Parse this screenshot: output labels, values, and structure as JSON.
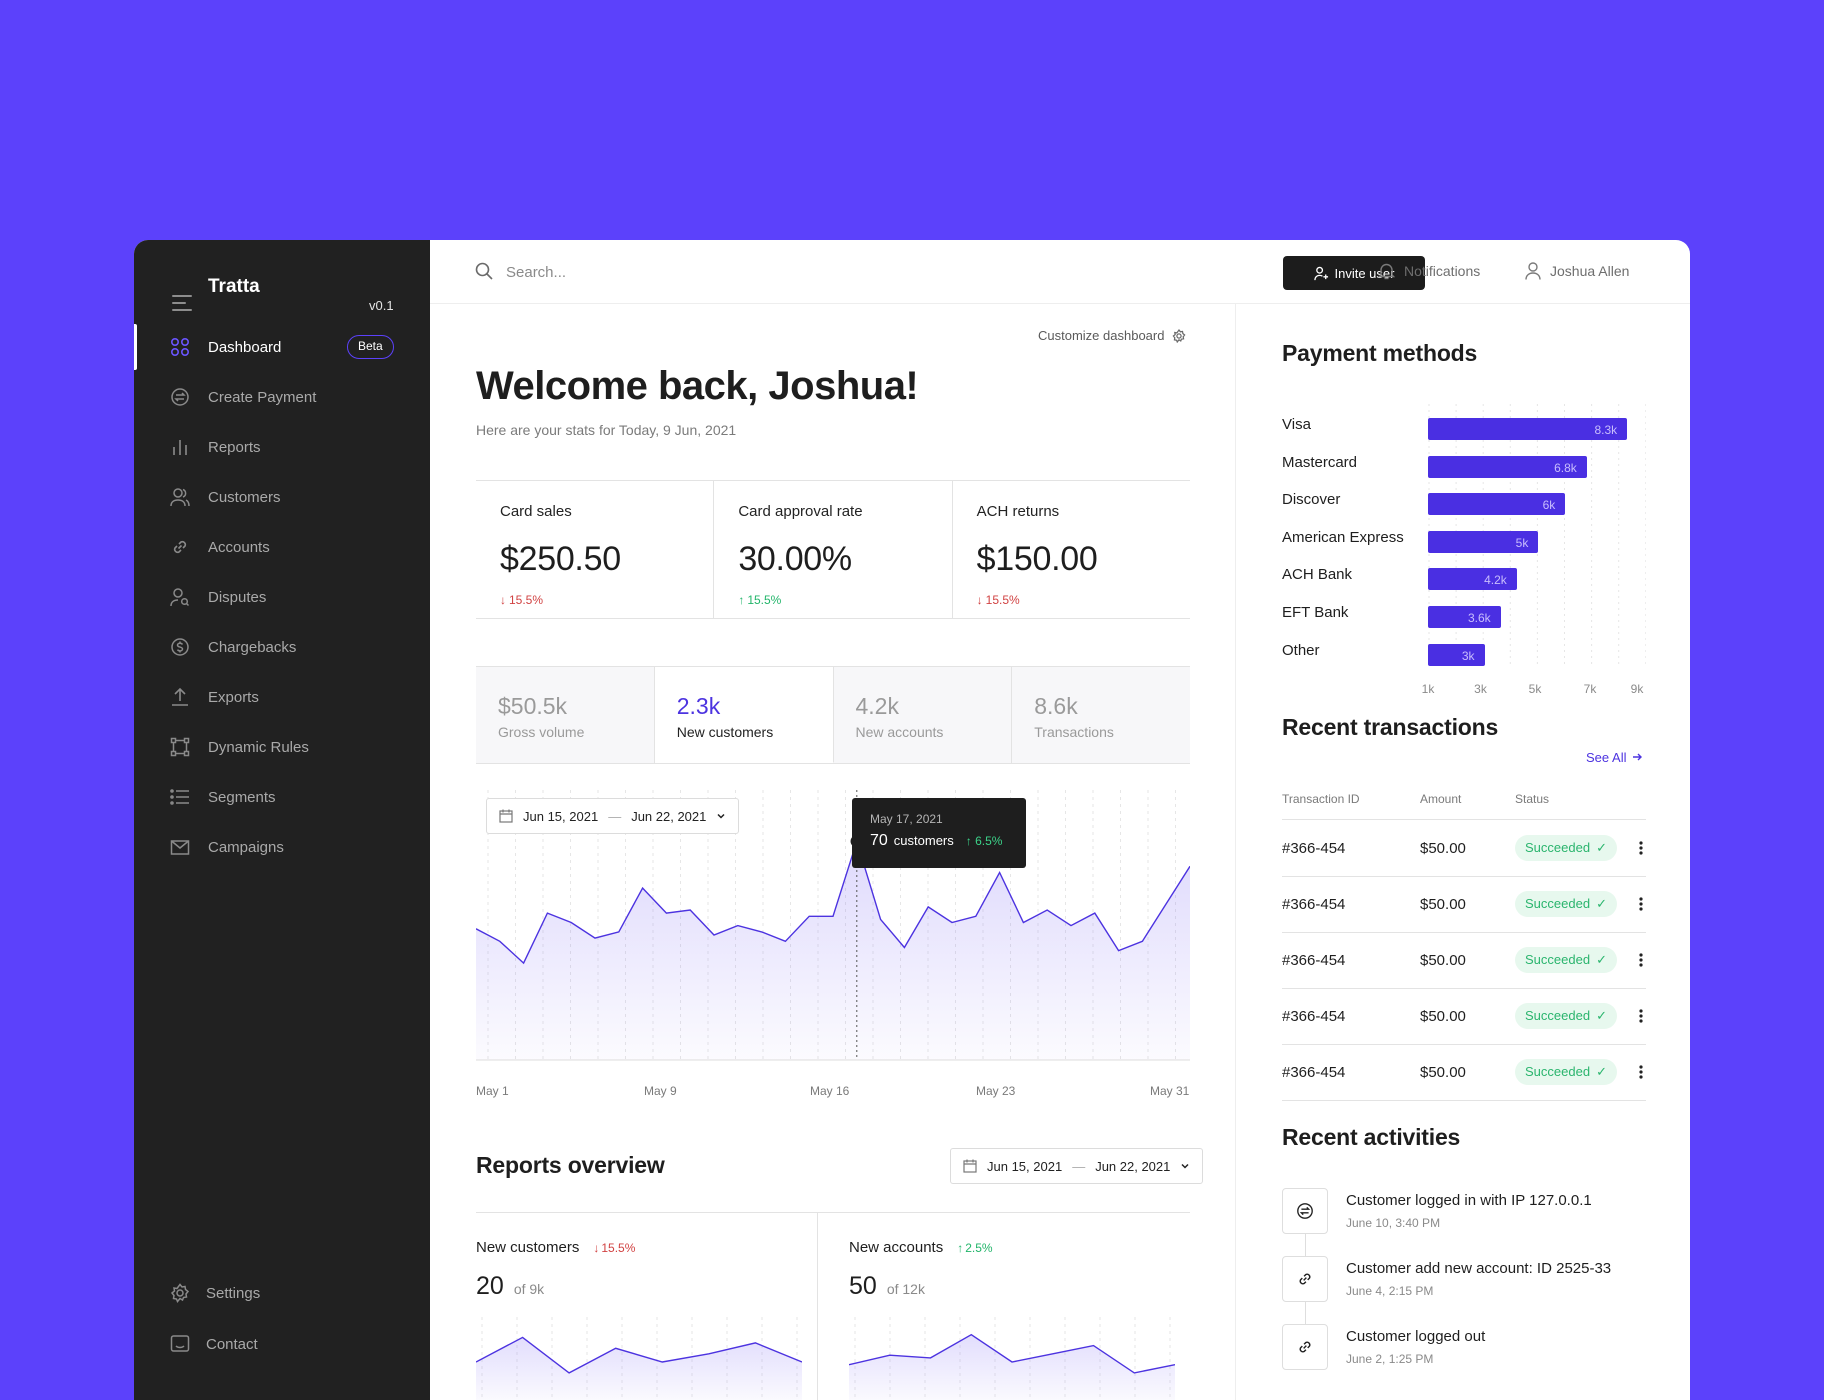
{
  "brand": {
    "name": "Tratta",
    "version": "v0.1"
  },
  "sidebar": {
    "items": [
      {
        "label": "Dashboard",
        "icon": "grid-icon",
        "badge": "Beta",
        "active": true
      },
      {
        "label": "Create Payment",
        "icon": "payment-icon"
      },
      {
        "label": "Reports",
        "icon": "bar-chart-icon"
      },
      {
        "label": "Customers",
        "icon": "users-icon"
      },
      {
        "label": "Accounts",
        "icon": "link-icon"
      },
      {
        "label": "Disputes",
        "icon": "user-search-icon"
      },
      {
        "label": "Chargebacks",
        "icon": "refund-icon"
      },
      {
        "label": "Exports",
        "icon": "upload-icon"
      },
      {
        "label": "Dynamic Rules",
        "icon": "workflow-icon"
      },
      {
        "label": "Segments",
        "icon": "list-icon"
      },
      {
        "label": "Campaigns",
        "icon": "mail-icon"
      }
    ],
    "bottom": [
      {
        "label": "Settings",
        "icon": "gear-icon"
      },
      {
        "label": "Contact",
        "icon": "chat-icon"
      }
    ]
  },
  "topbar": {
    "search_placeholder": "Search...",
    "invite_label": "Invite user",
    "notifications_label": "Notifications",
    "user_name": "Joshua Allen"
  },
  "main": {
    "customize_label": "Customize dashboard",
    "welcome": "Welcome back, Joshua!",
    "subtitle": "Here are your stats for Today, 9 Jun, 2021",
    "stats": [
      {
        "label": "Card sales",
        "value": "$250.50",
        "change": "15.5%",
        "direction": "down"
      },
      {
        "label": "Card approval rate",
        "value": "30.00%",
        "change": "15.5%",
        "direction": "up"
      },
      {
        "label": "ACH returns",
        "value": "$150.00",
        "change": "15.5%",
        "direction": "down"
      }
    ],
    "tabs": [
      {
        "value": "$50.5k",
        "label": "Gross volume"
      },
      {
        "value": "2.3k",
        "label": "New customers",
        "active": true
      },
      {
        "value": "4.2k",
        "label": "New accounts"
      },
      {
        "value": "8.6k",
        "label": "Transactions"
      }
    ],
    "date_range": {
      "start": "Jun 15, 2021",
      "end": "Jun 22, 2021"
    },
    "tooltip": {
      "date": "May 17, 2021",
      "value": "70",
      "unit": "customers",
      "change": "6.5%"
    },
    "reports_title": "Reports overview",
    "reports_date_range": {
      "start": "Jun 15, 2021",
      "end": "Jun 22, 2021"
    },
    "reports": [
      {
        "label": "New customers",
        "change": "15.5%",
        "direction": "down",
        "value": "20",
        "of": "of 9k"
      },
      {
        "label": "New accounts",
        "change": "2.5%",
        "direction": "up",
        "value": "50",
        "of": "of 12k"
      }
    ]
  },
  "chart_data": [
    {
      "type": "area",
      "title": "New customers",
      "x_ticks": [
        "May 1",
        "May 9",
        "May 16",
        "May 23",
        "May 31"
      ],
      "x": [
        1,
        2,
        3,
        4,
        5,
        6,
        7,
        8,
        9,
        10,
        11,
        12,
        13,
        14,
        15,
        16,
        17,
        18,
        19,
        20,
        21,
        22,
        23,
        24,
        25,
        26,
        27,
        28,
        29,
        30,
        31
      ],
      "values": [
        42,
        38,
        31,
        47,
        44,
        39,
        41,
        55,
        47,
        48,
        40,
        43,
        41,
        38,
        46,
        46,
        70,
        45,
        36,
        49,
        44,
        46,
        60,
        44,
        48,
        43,
        47,
        35,
        38,
        50,
        62
      ],
      "ylim": [
        0,
        80
      ],
      "highlight": {
        "x": 17,
        "label": "May 17, 2021",
        "value": 70
      }
    },
    {
      "type": "bar",
      "orientation": "horizontal",
      "title": "Payment methods",
      "categories": [
        "Visa",
        "Mastercard",
        "Discover",
        "American Express",
        "ACH Bank",
        "EFT Bank",
        "Other"
      ],
      "values": [
        8.3,
        6.8,
        6.0,
        5.0,
        4.2,
        3.6,
        3.0
      ],
      "value_labels": [
        "8.3k",
        "6.8k",
        "6k",
        "5k",
        "4.2k",
        "3.6k",
        "3k"
      ],
      "x_ticks": [
        "1k",
        "3k",
        "5k",
        "7k",
        "9k"
      ],
      "xlim": [
        1,
        9
      ]
    },
    {
      "type": "area",
      "title": "New customers (report)",
      "values": [
        30,
        48,
        22,
        40,
        30,
        36,
        44,
        30
      ],
      "ylim": [
        0,
        60
      ]
    },
    {
      "type": "area",
      "title": "New accounts (report)",
      "values": [
        28,
        35,
        33,
        50,
        30,
        36,
        42,
        22,
        28
      ],
      "ylim": [
        0,
        60
      ]
    }
  ],
  "right": {
    "payment_title": "Payment methods",
    "transactions_title": "Recent transactions",
    "see_all": "See All",
    "tx_columns": [
      "Transaction ID",
      "Amount",
      "Status"
    ],
    "transactions": [
      {
        "id": "#366-454",
        "amount": "$50.00",
        "status": "Succeeded"
      },
      {
        "id": "#366-454",
        "amount": "$50.00",
        "status": "Succeeded"
      },
      {
        "id": "#366-454",
        "amount": "$50.00",
        "status": "Succeeded"
      },
      {
        "id": "#366-454",
        "amount": "$50.00",
        "status": "Succeeded"
      },
      {
        "id": "#366-454",
        "amount": "$50.00",
        "status": "Succeeded"
      }
    ],
    "activities_title": "Recent activities",
    "activities": [
      {
        "text": "Customer logged in with IP 127.0.0.1",
        "time": "June 10, 3:40 PM",
        "icon": "payment-icon"
      },
      {
        "text": "Customer add new account: ID 2525-33",
        "time": "June 4, 2:15 PM",
        "icon": "link-icon"
      },
      {
        "text": "Customer logged out",
        "time": "June 2, 1:25 PM",
        "icon": "link-icon"
      }
    ]
  },
  "colors": {
    "background": "#5c41fb",
    "sidebar": "#212121",
    "accent": "#4a2fe2",
    "success": "#2bb56e",
    "danger": "#d14242"
  }
}
